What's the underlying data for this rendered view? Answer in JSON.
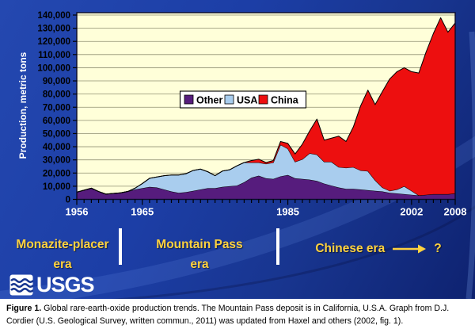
{
  "chart_data": {
    "type": "area",
    "stacked": true,
    "ylabel": "Production, metric tons",
    "xlabel": "",
    "ylim": [
      0,
      142000
    ],
    "ytick_step": 10000,
    "ytick_max": 140000,
    "x_ticks": [
      1956,
      1965,
      1985,
      2002,
      2008
    ],
    "grid": "horizontal",
    "legend_position": "top-center",
    "plot_bg": "#ffffd9",
    "grid_color": "#8f8f72",
    "years": [
      1956,
      1957,
      1958,
      1959,
      1960,
      1961,
      1962,
      1963,
      1964,
      1965,
      1966,
      1967,
      1968,
      1969,
      1970,
      1971,
      1972,
      1973,
      1974,
      1975,
      1976,
      1977,
      1978,
      1979,
      1980,
      1981,
      1982,
      1983,
      1984,
      1985,
      1986,
      1987,
      1988,
      1989,
      1990,
      1991,
      1992,
      1993,
      1994,
      1995,
      1996,
      1997,
      1998,
      1999,
      2000,
      2001,
      2002,
      2003,
      2004,
      2005,
      2006,
      2007,
      2008
    ],
    "series": [
      {
        "name": "Other",
        "color": "#561c7d",
        "values": [
          5500,
          7000,
          8500,
          6000,
          4000,
          4500,
          5000,
          6000,
          7500,
          8500,
          9500,
          9000,
          7500,
          6000,
          5000,
          5500,
          6500,
          7500,
          8500,
          8500,
          9500,
          10000,
          10500,
          13000,
          16500,
          18000,
          16000,
          15500,
          17500,
          18500,
          16000,
          15500,
          15000,
          14000,
          12000,
          10500,
          9000,
          8000,
          8000,
          7500,
          7000,
          6500,
          6000,
          5000,
          4500,
          4000,
          3500,
          3000,
          3500,
          4000,
          4000,
          4000,
          4500
        ]
      },
      {
        "name": "USA",
        "color": "#a9cdee",
        "values": [
          0,
          0,
          0,
          0,
          0,
          0,
          0,
          0,
          1000,
          3500,
          6500,
          8000,
          10500,
          12500,
          13500,
          14000,
          15500,
          15500,
          12500,
          9500,
          12000,
          12500,
          15000,
          15000,
          11500,
          10000,
          11000,
          12500,
          24000,
          20000,
          12500,
          15000,
          20000,
          20000,
          16500,
          18000,
          15500,
          16000,
          16500,
          14500,
          14500,
          8000,
          3000,
          1500,
          3000,
          6000,
          3000,
          0,
          0,
          0,
          0,
          0,
          0
        ]
      },
      {
        "name": "China",
        "color": "#ed0f0f",
        "values": [
          0,
          0,
          0,
          0,
          0,
          0,
          0,
          0,
          0,
          0,
          0,
          0,
          0,
          0,
          0,
          0,
          0,
          0,
          0,
          0,
          0,
          0,
          0,
          0,
          1500,
          2500,
          1000,
          1500,
          2500,
          4000,
          6000,
          11500,
          17000,
          27000,
          16500,
          18000,
          23500,
          20000,
          30500,
          49000,
          61500,
          57500,
          73000,
          85000,
          89500,
          90000,
          90500,
          93000,
          108500,
          122000,
          134000,
          123000,
          129500
        ]
      }
    ]
  },
  "eras": [
    {
      "line1": "Monazite-placer",
      "line2": "era"
    },
    {
      "line1": "Mountain Pass",
      "line2": "era"
    },
    {
      "line1": "Chinese era",
      "question": "?"
    }
  ],
  "logo": {
    "text": "USGS"
  },
  "caption": {
    "label": "Figure 1.",
    "text": "Global rare-earth-oxide production trends. The Mountain Pass deposit is in California, U.S.A. Graph from D.J. Cordier (U.S. Geological Survey, written commun., 2011) was updated from Haxel and others (2002, fig. 1)."
  },
  "colors": {
    "slide_bg": "#1c3ea6",
    "plot_bg": "#ffffd9",
    "grid": "#8f8f72",
    "other": "#561c7d",
    "usa": "#a9cdee",
    "china": "#ed0f0f",
    "era_text": "#ffd23f",
    "x_tick_text": "#ffffff",
    "y_tick_text": "#000000"
  }
}
